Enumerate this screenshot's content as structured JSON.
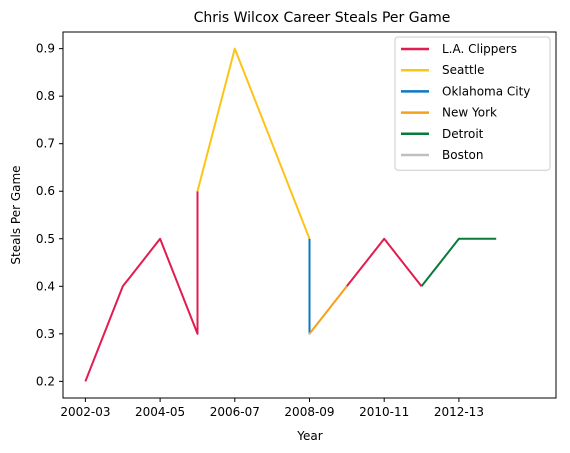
{
  "chart_data": {
    "type": "line",
    "title": "Chris Wilcox Career Steals Per Game",
    "xlabel": "Year",
    "ylabel": "Steals Per Game",
    "xticks": [
      "2002-03",
      "2004-05",
      "2006-07",
      "2008-09",
      "2010-11",
      "2012-13"
    ],
    "yticks": [
      0.2,
      0.3,
      0.4,
      0.5,
      0.6,
      0.7,
      0.8,
      0.9
    ],
    "ylim": [
      0.165,
      0.935
    ],
    "legend_position": "top-right",
    "series": [
      {
        "name": "L.A. Clippers",
        "color": "#e31c4f",
        "points": [
          {
            "x": "2002-03",
            "y": 0.2
          },
          {
            "x": "2003-04",
            "y": 0.4
          },
          {
            "x": "2004-05",
            "y": 0.5
          },
          {
            "x": "2005-06",
            "y": 0.3
          },
          {
            "x": "2005-06",
            "y": 0.6
          }
        ]
      },
      {
        "name": "Seattle",
        "color": "#fdc418",
        "points": [
          {
            "x": "2005-06",
            "y": 0.6
          },
          {
            "x": "2006-07",
            "y": 0.9
          },
          {
            "x": "2007-08",
            "y": 0.7
          },
          {
            "x": "2008-09",
            "y": 0.5
          }
        ]
      },
      {
        "name": "Oklahoma City",
        "color": "#0b7ac1",
        "points": [
          {
            "x": "2008-09",
            "y": 0.5
          },
          {
            "x": "2008-09",
            "y": 0.3
          }
        ]
      },
      {
        "name": "New York",
        "color": "#f6a01b",
        "points": [
          {
            "x": "2008-09",
            "y": 0.3
          },
          {
            "x": "2009-10",
            "y": 0.4
          }
        ]
      },
      {
        "name": "L.A. Clippers",
        "color": "#e31c4f",
        "legend": false,
        "points": [
          {
            "x": "2009-10",
            "y": 0.4
          },
          {
            "x": "2010-11",
            "y": 0.5
          },
          {
            "x": "2011-12",
            "y": 0.4
          }
        ]
      },
      {
        "name": "Detroit",
        "color": "#0a7a3a",
        "points": [
          {
            "x": "2011-12",
            "y": 0.4
          },
          {
            "x": "2012-13",
            "y": 0.5
          },
          {
            "x": "2013-14",
            "y": 0.5
          }
        ]
      },
      {
        "name": "Boston",
        "color": "#c0c0c0",
        "points": [
          {
            "x": "2008-09",
            "y": 0.3
          }
        ]
      }
    ],
    "legend_entries": [
      {
        "name": "L.A. Clippers",
        "color": "#e31c4f"
      },
      {
        "name": "Seattle",
        "color": "#fdc418"
      },
      {
        "name": "Oklahoma City",
        "color": "#0b7ac1"
      },
      {
        "name": "New York",
        "color": "#f6a01b"
      },
      {
        "name": "Detroit",
        "color": "#0a7a3a"
      },
      {
        "name": "Boston",
        "color": "#c0c0c0"
      }
    ],
    "grid": false
  }
}
